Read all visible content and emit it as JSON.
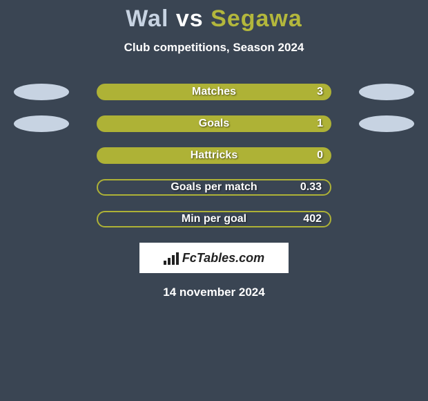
{
  "title": {
    "player1": "Wal",
    "vs": "vs",
    "player2": "Segawa"
  },
  "subtitle": "Club competitions, Season 2024",
  "stats": [
    {
      "label": "Matches",
      "value": "3",
      "filled": true,
      "show_left_ellipse": true,
      "show_right_ellipse": true
    },
    {
      "label": "Goals",
      "value": "1",
      "filled": true,
      "show_left_ellipse": true,
      "show_right_ellipse": true
    },
    {
      "label": "Hattricks",
      "value": "0",
      "filled": true,
      "show_left_ellipse": false,
      "show_right_ellipse": false
    },
    {
      "label": "Goals per match",
      "value": "0.33",
      "filled": false,
      "show_left_ellipse": false,
      "show_right_ellipse": false
    },
    {
      "label": "Min per goal",
      "value": "402",
      "filled": false,
      "show_left_ellipse": false,
      "show_right_ellipse": false
    }
  ],
  "branding": {
    "name": "FcTables.com"
  },
  "date": "14 november 2024",
  "colors": {
    "background": "#3a4553",
    "bar_fill": "#aeb236",
    "ellipse": "#c7d3e2",
    "player1_color": "#c7d3e2",
    "player2_color": "#b3b73c",
    "text": "#ffffff"
  }
}
